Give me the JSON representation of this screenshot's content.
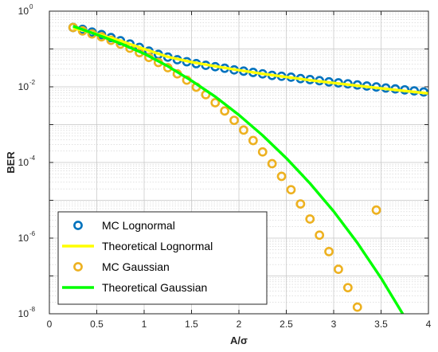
{
  "chart_data": {
    "type": "line",
    "xlabel": "A/σ",
    "ylabel": "BER",
    "xlim": [
      0,
      4
    ],
    "ylim": [
      1e-08,
      1
    ],
    "yscale": "log",
    "grid": true,
    "legend_position": "bottom-left",
    "x_ticks": [
      "0",
      "0.5",
      "1",
      "1.5",
      "2",
      "2.5",
      "3",
      "3.5",
      "4"
    ],
    "y_ticks": [
      {
        "base": "10",
        "exp": "-8"
      },
      {
        "base": "10",
        "exp": "-6"
      },
      {
        "base": "10",
        "exp": "-4"
      },
      {
        "base": "10",
        "exp": "-2"
      },
      {
        "base": "10",
        "exp": "0"
      }
    ],
    "series": [
      {
        "name": "MC Lognormal",
        "kind": "marker",
        "color": "#0072BD",
        "x": [
          0.25,
          0.35,
          0.45,
          0.55,
          0.65,
          0.75,
          0.85,
          0.95,
          1.05,
          1.15,
          1.25,
          1.35,
          1.45,
          1.55,
          1.65,
          1.75,
          1.85,
          1.95,
          2.05,
          2.15,
          2.25,
          2.35,
          2.45,
          2.55,
          2.65,
          2.75,
          2.85,
          2.95,
          3.05,
          3.15,
          3.25,
          3.35,
          3.45,
          3.55,
          3.65,
          3.75,
          3.85,
          3.95
        ],
        "y": [
          0.37,
          0.33,
          0.28,
          0.24,
          0.2,
          0.165,
          0.135,
          0.11,
          0.088,
          0.072,
          0.061,
          0.052,
          0.046,
          0.041,
          0.037,
          0.034,
          0.031,
          0.028,
          0.026,
          0.024,
          0.022,
          0.02,
          0.019,
          0.018,
          0.0165,
          0.0155,
          0.0145,
          0.0135,
          0.0127,
          0.012,
          0.0112,
          0.0105,
          0.0099,
          0.0093,
          0.0088,
          0.0083,
          0.0078,
          0.0073
        ]
      },
      {
        "name": "Theoretical Lognormal",
        "kind": "line",
        "color": "#FFFF00",
        "x": [
          0.25,
          0.5,
          0.75,
          1.0,
          1.25,
          1.5,
          1.75,
          2.0,
          2.25,
          2.5,
          2.75,
          3.0,
          3.25,
          3.5,
          3.75,
          4.0
        ],
        "y": [
          0.36,
          0.25,
          0.165,
          0.1,
          0.062,
          0.045,
          0.035,
          0.0275,
          0.022,
          0.0182,
          0.015,
          0.0126,
          0.0107,
          0.0091,
          0.0078,
          0.0067
        ]
      },
      {
        "name": "MC Gaussian",
        "kind": "marker",
        "color": "#EDB120",
        "x": [
          0.25,
          0.35,
          0.45,
          0.55,
          0.65,
          0.75,
          0.85,
          0.95,
          1.05,
          1.15,
          1.25,
          1.35,
          1.45,
          1.55,
          1.65,
          1.75,
          1.85,
          1.95,
          2.05,
          2.15,
          2.25,
          2.35,
          2.45,
          2.55,
          2.65,
          2.75,
          2.85,
          2.95,
          3.05,
          3.15,
          3.25,
          3.45
        ],
        "y": [
          0.37,
          0.3,
          0.25,
          0.21,
          0.17,
          0.135,
          0.105,
          0.08,
          0.06,
          0.044,
          0.032,
          0.022,
          0.015,
          0.0098,
          0.0062,
          0.0038,
          0.0023,
          0.0013,
          0.00072,
          0.00038,
          0.00019,
          9.3e-05,
          4.3e-05,
          1.9e-05,
          8e-06,
          3.2e-06,
          1.2e-06,
          4.4e-07,
          1.5e-07,
          4.9e-08,
          1.5e-08,
          5.5e-06
        ]
      },
      {
        "name": "Theoretical Gaussian",
        "kind": "line",
        "color": "#00FF00",
        "x": [
          0.25,
          0.5,
          0.75,
          1.0,
          1.25,
          1.5,
          1.75,
          2.0,
          2.25,
          2.5,
          2.75,
          3.0,
          3.25,
          3.5,
          3.75,
          4.0
        ],
        "y": [
          0.4,
          0.24,
          0.14,
          0.075,
          0.035,
          0.0145,
          0.0055,
          0.0018,
          0.00052,
          0.00013,
          2.8e-05,
          5.1e-06,
          7.5e-07,
          8.8e-08,
          8.1e-09,
          5.8e-10
        ]
      }
    ]
  }
}
